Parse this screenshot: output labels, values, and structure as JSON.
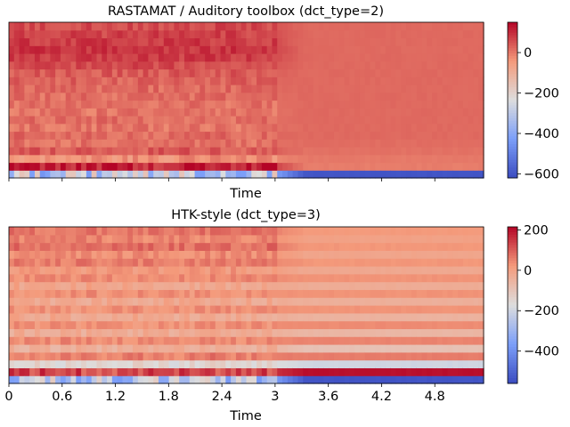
{
  "chart_data": [
    {
      "type": "heatmap",
      "title": "RASTAMAT / Auditory toolbox (dct_type=2)",
      "xlabel": "Time",
      "ylabel": "",
      "xlim": [
        0,
        5.35
      ],
      "xticks": [
        0,
        0.6,
        1.2,
        1.8,
        2.4,
        3,
        3.6,
        4.2,
        4.8
      ],
      "xticklabels_visible": false,
      "n_coefficients": 20,
      "colormap": "coolwarm",
      "colorbar": {
        "range": [
          -620,
          150
        ],
        "ticks": [
          0,
          -200,
          -400,
          -600
        ],
        "ticklabels": [
          "0",
          "−200",
          "−400",
          "−600"
        ]
      },
      "coefficient_profile": {
        "rows_from_bottom": [
          "row-0",
          "row-1",
          "row-2",
          "row-3",
          "row-4",
          "row-5",
          "row-6",
          "row-7",
          "row-8",
          "row-9",
          "row-10",
          "row-11",
          "row-12",
          "row-13",
          "row-14",
          "row-15",
          "row-16",
          "row-17",
          "row-18",
          "row-19"
        ],
        "active_values": [
          -300,
          120,
          -30,
          40,
          10,
          20,
          5,
          15,
          5,
          10,
          15,
          20,
          30,
          40,
          60,
          80,
          90,
          80,
          70,
          60
        ],
        "silence_values": [
          -600,
          -5,
          0,
          10,
          15,
          20,
          20,
          20,
          20,
          20,
          20,
          20,
          20,
          20,
          20,
          20,
          20,
          20,
          20,
          20
        ],
        "active_until": 3.0,
        "variation": [
          150,
          60,
          40,
          35,
          30,
          30,
          30,
          30,
          30,
          30,
          30,
          30,
          30,
          30,
          30,
          30,
          30,
          30,
          30,
          30
        ]
      }
    },
    {
      "type": "heatmap",
      "title": "HTK-style (dct_type=3)",
      "xlabel": "Time",
      "ylabel": "",
      "xlim": [
        0,
        5.35
      ],
      "xticks": [
        0,
        0.6,
        1.2,
        1.8,
        2.4,
        3,
        3.6,
        4.2,
        4.8
      ],
      "xticklabels": [
        "0",
        "0.6",
        "1.2",
        "1.8",
        "2.4",
        "3",
        "3.6",
        "4.2",
        "4.8"
      ],
      "n_coefficients": 20,
      "colormap": "coolwarm",
      "colorbar": {
        "range": [
          -560,
          215
        ],
        "ticks": [
          200,
          0,
          -200,
          -400
        ],
        "ticklabels": [
          "200",
          "0",
          "−200",
          "−400"
        ]
      },
      "coefficient_profile": {
        "rows_from_bottom": [
          "row-0",
          "row-1",
          "row-2",
          "row-3",
          "row-4",
          "row-5",
          "row-6",
          "row-7",
          "row-8",
          "row-9",
          "row-10",
          "row-11",
          "row-12",
          "row-13",
          "row-14",
          "row-15",
          "row-16",
          "row-17",
          "row-18",
          "row-19"
        ],
        "active_values": [
          -250,
          130,
          -150,
          60,
          -40,
          40,
          -30,
          30,
          -20,
          30,
          -20,
          30,
          -10,
          40,
          20,
          60,
          40,
          80,
          50,
          70
        ],
        "silence_values": [
          -540,
          200,
          -200,
          60,
          -90,
          50,
          -60,
          40,
          -50,
          30,
          -40,
          30,
          -30,
          30,
          -20,
          25,
          -10,
          25,
          0,
          20
        ],
        "active_until": 3.0,
        "variation": [
          140,
          60,
          40,
          35,
          30,
          30,
          30,
          30,
          30,
          30,
          30,
          30,
          30,
          30,
          30,
          30,
          30,
          30,
          30,
          30
        ]
      }
    }
  ]
}
